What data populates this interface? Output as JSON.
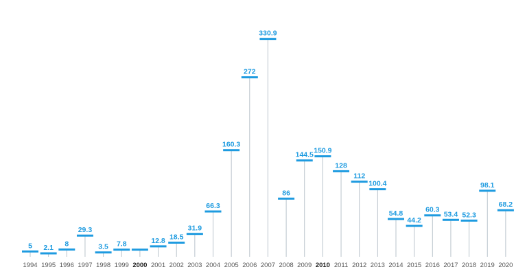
{
  "chart_data": {
    "type": "lollipop",
    "categories": [
      "1994",
      "1995",
      "1996",
      "1997",
      "1998",
      "1999",
      "2000",
      "2001",
      "2002",
      "2003",
      "2004",
      "2005",
      "2006",
      "2007",
      "2008",
      "2009",
      "2010",
      "2011",
      "2012",
      "2013",
      "2014",
      "2015",
      "2016",
      "2017",
      "2018",
      "2019",
      "2020"
    ],
    "values": [
      5,
      2.1,
      8,
      29.3,
      3.5,
      7.8,
      7.8,
      12.8,
      18.5,
      31.9,
      66.3,
      160.3,
      272,
      330.9,
      86,
      144.5,
      150.9,
      128,
      112,
      100.4,
      54.8,
      44.2,
      60.3,
      53.4,
      52.3,
      98.1,
      68.2
    ],
    "data_labels": [
      "5",
      "2.1",
      "8",
      "29.3",
      "3.5",
      "7.8",
      "",
      "12.8",
      "18.5",
      "31.9",
      "66.3",
      "160.3",
      "272",
      "330.9",
      "86",
      "144.5",
      "150.9",
      "128",
      "112",
      "100.4",
      "54.8",
      "44.2",
      "60.3",
      "53.4",
      "52.3",
      "98.1",
      "68.2"
    ],
    "bold_categories": [
      "2000",
      "2010"
    ],
    "colors": {
      "accent": "#1e9be0",
      "label": "#1e9be0",
      "stem": "#b9c3cb",
      "axis_text": "#555555",
      "axis_text_bold": "#222222"
    }
  }
}
